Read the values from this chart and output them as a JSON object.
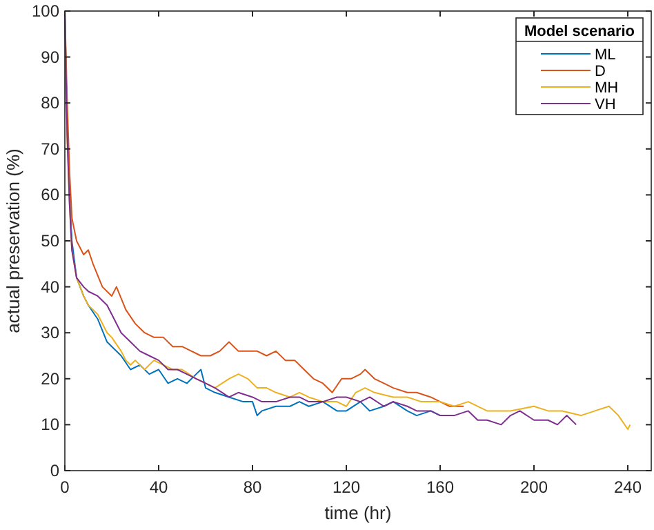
{
  "chart_data": {
    "type": "line",
    "xlabel": "time (hr)",
    "ylabel": "actual preservation (%)",
    "legend_title": "Model scenario",
    "legend": "top right",
    "xlim": [
      0,
      250
    ],
    "xticks": [
      0,
      40,
      80,
      120,
      160,
      200,
      240
    ],
    "ylim": [
      0,
      100
    ],
    "yticks": [
      0,
      10,
      20,
      30,
      40,
      50,
      60,
      70,
      80,
      90,
      100
    ],
    "grid": false,
    "line_style": "solid",
    "marker": "none",
    "series": [
      {
        "name": "ML",
        "color": "#0072bd",
        "x": [
          0,
          1,
          2,
          3,
          5,
          8,
          10,
          14,
          18,
          20,
          24,
          28,
          32,
          36,
          40,
          44,
          48,
          52,
          56,
          58,
          60,
          64,
          70,
          76,
          80,
          82,
          84,
          90,
          96,
          100,
          104,
          110,
          116,
          120,
          126,
          130,
          136,
          140,
          146,
          150,
          156,
          160,
          165
        ],
        "values": [
          100,
          75,
          60,
          50,
          42,
          38,
          36,
          33,
          28,
          27,
          25,
          22,
          23,
          21,
          22,
          19,
          20,
          19,
          21,
          22,
          18,
          17,
          16,
          15,
          15,
          12,
          13,
          14,
          14,
          15,
          14,
          15,
          13,
          13,
          15,
          13,
          14,
          15,
          13,
          12,
          13,
          12,
          12
        ]
      },
      {
        "name": "D",
        "color": "#d95319",
        "x": [
          0,
          1,
          2,
          3,
          5,
          8,
          10,
          12,
          16,
          20,
          22,
          26,
          30,
          34,
          38,
          42,
          46,
          50,
          54,
          58,
          62,
          66,
          70,
          74,
          78,
          82,
          86,
          90,
          94,
          98,
          102,
          106,
          110,
          114,
          118,
          122,
          126,
          128,
          132,
          136,
          140,
          146,
          150,
          156,
          160,
          164,
          170
        ],
        "values": [
          100,
          80,
          65,
          55,
          50,
          47,
          48,
          45,
          40,
          38,
          40,
          35,
          32,
          30,
          29,
          29,
          27,
          27,
          26,
          25,
          25,
          26,
          28,
          26,
          26,
          26,
          25,
          26,
          24,
          24,
          22,
          20,
          19,
          17,
          20,
          20,
          21,
          22,
          20,
          19,
          18,
          17,
          17,
          16,
          15,
          14,
          14
        ]
      },
      {
        "name": "MH",
        "color": "#edb120",
        "x": [
          0,
          1,
          2,
          3,
          5,
          8,
          10,
          14,
          18,
          20,
          24,
          26,
          28,
          30,
          34,
          38,
          42,
          46,
          50,
          56,
          60,
          64,
          70,
          74,
          78,
          82,
          86,
          90,
          96,
          100,
          104,
          110,
          116,
          120,
          124,
          128,
          132,
          140,
          146,
          152,
          160,
          166,
          172,
          180,
          190,
          200,
          206,
          212,
          220,
          226,
          232,
          236,
          240,
          241
        ],
        "values": [
          100,
          72,
          58,
          48,
          42,
          38,
          36,
          34,
          30,
          29,
          26,
          24,
          23,
          24,
          22,
          24,
          23,
          22,
          22,
          20,
          19,
          18,
          20,
          21,
          20,
          18,
          18,
          17,
          16,
          17,
          16,
          15,
          15,
          14,
          17,
          18,
          17,
          16,
          16,
          15,
          15,
          14,
          15,
          13,
          13,
          14,
          13,
          13,
          12,
          13,
          14,
          12,
          9,
          10
        ]
      },
      {
        "name": "VH",
        "color": "#7e2f8e",
        "x": [
          0,
          1,
          2,
          3,
          5,
          8,
          10,
          14,
          18,
          20,
          24,
          28,
          32,
          36,
          40,
          44,
          48,
          52,
          56,
          60,
          64,
          70,
          74,
          80,
          84,
          90,
          96,
          100,
          104,
          110,
          116,
          120,
          126,
          130,
          136,
          140,
          146,
          150,
          156,
          160,
          166,
          172,
          176,
          180,
          186,
          190,
          194,
          200,
          206,
          210,
          214,
          218
        ],
        "values": [
          100,
          73,
          58,
          48,
          42,
          40,
          39,
          38,
          36,
          34,
          30,
          28,
          26,
          25,
          24,
          22,
          22,
          21,
          20,
          19,
          18,
          16,
          17,
          16,
          15,
          15,
          16,
          16,
          15,
          15,
          16,
          16,
          15,
          16,
          14,
          15,
          14,
          13,
          13,
          12,
          12,
          13,
          11,
          11,
          10,
          12,
          13,
          11,
          11,
          10,
          12,
          10
        ]
      }
    ]
  }
}
